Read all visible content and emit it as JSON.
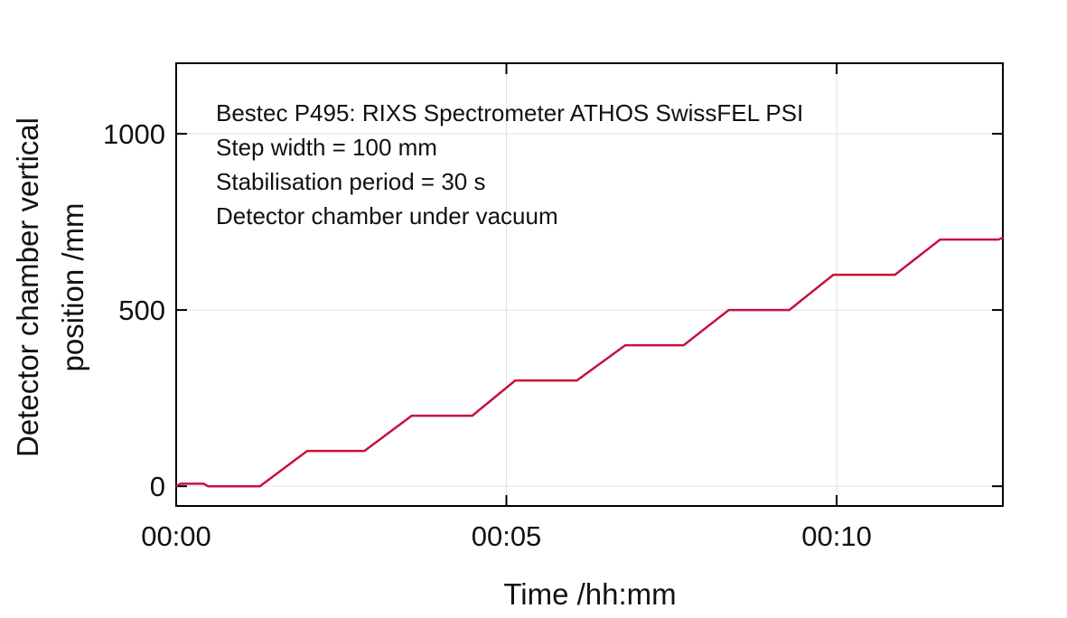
{
  "chart_data": {
    "type": "line",
    "title": "",
    "xlabel": "Time /hh:mm",
    "ylabel": [
      "Detector chamber vertical",
      "position /mm"
    ],
    "annotations": [
      "Bestec P495: RIXS Spectrometer ATHOS SwissFEL PSI",
      "Step width = 100 mm",
      "Stabilisation period = 30 s",
      "Detector chamber under vacuum"
    ],
    "xlim": [
      "00:00:00",
      "00:12:31"
    ],
    "ylim": [
      -56,
      1200
    ],
    "x_ticks": [
      {
        "value": "00:00:00",
        "label": "00:00"
      },
      {
        "value": "00:05:00",
        "label": "00:05"
      },
      {
        "value": "00:10:00",
        "label": "00:10"
      }
    ],
    "y_ticks": [
      {
        "value": 0,
        "label": "0"
      },
      {
        "value": 500,
        "label": "500"
      },
      {
        "value": 1000,
        "label": "1000"
      }
    ],
    "grid": true,
    "legend": "none",
    "series": [
      {
        "color": "#c8103e",
        "x": [
          "00:00:00",
          "00:00:04",
          "00:00:25",
          "00:00:29",
          "00:01:16",
          "00:01:59",
          "00:02:51",
          "00:03:34",
          "00:04:29",
          "00:05:08",
          "00:06:04",
          "00:06:48",
          "00:07:41",
          "00:08:22",
          "00:09:17",
          "00:09:57",
          "00:10:53",
          "00:11:34",
          "00:12:27",
          "00:12:31"
        ],
        "y": [
          0,
          7,
          7,
          0,
          0,
          100,
          100,
          200,
          200,
          300,
          300,
          400,
          400,
          500,
          500,
          600,
          600,
          700,
          700,
          705
        ]
      }
    ]
  }
}
